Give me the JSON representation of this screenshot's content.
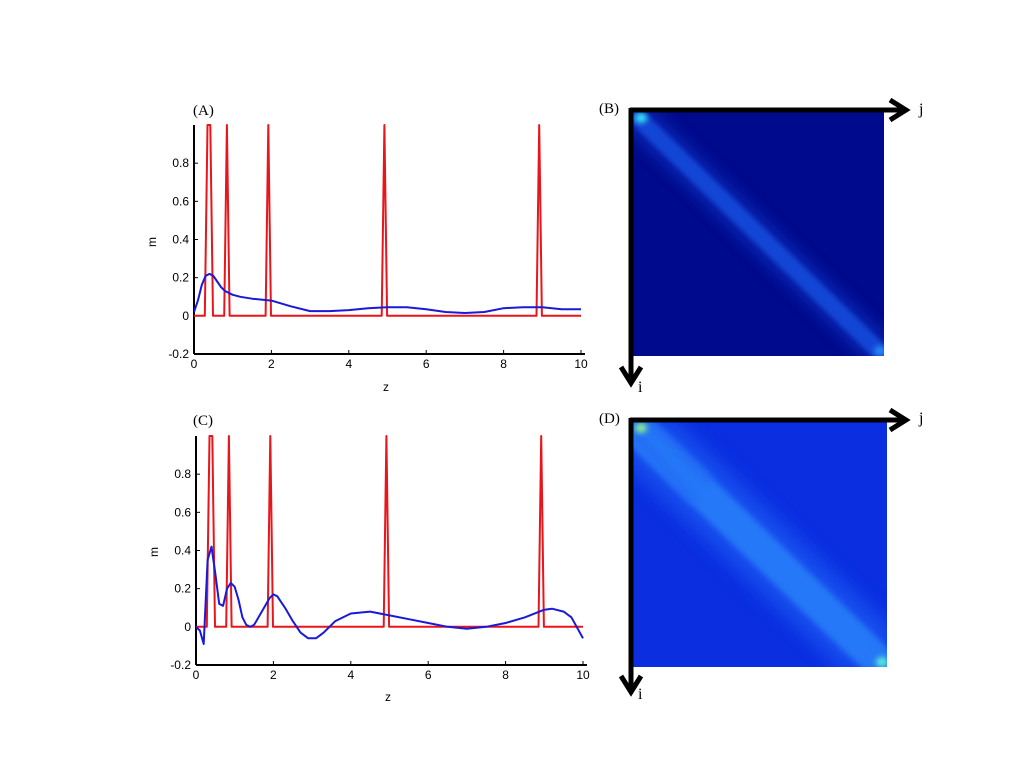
{
  "panels": {
    "a": "(A)",
    "b": "(B)",
    "c": "(C)",
    "d": "(D)"
  },
  "arrows": {
    "col_label": "j",
    "row_label": "i"
  },
  "chart_data": [
    {
      "type": "line",
      "panel": "(A)",
      "xlabel": "z",
      "ylabel": "m",
      "xlim": [
        0,
        10
      ],
      "ylim": [
        -0.2,
        1.0
      ],
      "xticks": [
        "0",
        "2",
        "4",
        "6",
        "8",
        "10"
      ],
      "yticks": [
        "-0.2",
        "0",
        "0.2",
        "0.4",
        "0.6",
        "0.8"
      ],
      "series": [
        {
          "color": "#e8161b",
          "x": [
            0,
            0.28,
            0.35,
            0.42,
            0.49,
            0.56,
            0.78,
            0.85,
            0.92,
            0.99,
            1.78,
            1.85,
            1.92,
            1.99,
            2.06,
            4.78,
            4.85,
            4.92,
            4.99,
            5.06,
            8.78,
            8.85,
            8.92,
            8.99,
            9.06,
            10
          ],
          "y": [
            0,
            0,
            1.0,
            1.0,
            0,
            0,
            0,
            1.0,
            0,
            0,
            0,
            0,
            1.0,
            0,
            0,
            0,
            0,
            1.0,
            0,
            0,
            0,
            0,
            1.0,
            0,
            0,
            0
          ]
        },
        {
          "color": "#1a1ad6",
          "x": [
            0,
            0.1,
            0.2,
            0.3,
            0.4,
            0.5,
            0.6,
            0.7,
            0.8,
            1.0,
            1.2,
            1.5,
            2.0,
            2.5,
            3.0,
            3.5,
            4.0,
            4.5,
            5.0,
            5.5,
            6.0,
            6.5,
            7.0,
            7.5,
            8.0,
            8.5,
            9.0,
            9.5,
            10.0
          ],
          "y": [
            0.02,
            0.08,
            0.16,
            0.21,
            0.22,
            0.21,
            0.18,
            0.15,
            0.13,
            0.11,
            0.1,
            0.09,
            0.08,
            0.05,
            0.025,
            0.025,
            0.03,
            0.04,
            0.045,
            0.045,
            0.035,
            0.02,
            0.015,
            0.02,
            0.04,
            0.045,
            0.045,
            0.035,
            0.035
          ]
        }
      ]
    },
    {
      "type": "heatmap",
      "panel": "(B)",
      "variant": "narrow-decaying-diagonal"
    },
    {
      "type": "line",
      "panel": "(C)",
      "xlabel": "z",
      "ylabel": "m",
      "xlim": [
        0,
        10
      ],
      "ylim": [
        -0.2,
        1.0
      ],
      "xticks": [
        "0",
        "2",
        "4",
        "6",
        "8",
        "10"
      ],
      "yticks": [
        "-0.2",
        "0",
        "0.2",
        "0.4",
        "0.6",
        "0.8"
      ],
      "series": [
        {
          "color": "#e8161b",
          "x": [
            0,
            0.28,
            0.35,
            0.42,
            0.49,
            0.56,
            0.78,
            0.85,
            0.92,
            0.99,
            1.78,
            1.85,
            1.92,
            1.99,
            2.06,
            4.78,
            4.85,
            4.92,
            4.99,
            5.06,
            8.78,
            8.85,
            8.92,
            8.99,
            9.06,
            10
          ],
          "y": [
            0,
            0,
            1.0,
            1.0,
            0,
            0,
            0,
            1.0,
            0,
            0,
            0,
            0,
            1.0,
            0,
            0,
            0,
            0,
            1.0,
            0,
            0,
            0,
            0,
            1.0,
            0,
            0,
            0
          ]
        },
        {
          "color": "#1a1ad6",
          "x": [
            0,
            0.1,
            0.2,
            0.3,
            0.4,
            0.5,
            0.6,
            0.7,
            0.8,
            0.9,
            1.0,
            1.1,
            1.2,
            1.3,
            1.4,
            1.5,
            1.7,
            1.9,
            2.0,
            2.1,
            2.3,
            2.5,
            2.7,
            2.9,
            3.1,
            3.3,
            3.6,
            4.0,
            4.5,
            5.0,
            5.5,
            6.0,
            6.5,
            7.0,
            7.5,
            8.0,
            8.5,
            9.0,
            9.2,
            9.5,
            9.7,
            10.0
          ],
          "y": [
            0.0,
            -0.02,
            -0.09,
            0.35,
            0.42,
            0.28,
            0.12,
            0.11,
            0.2,
            0.23,
            0.21,
            0.14,
            0.05,
            0.01,
            0.0,
            0.01,
            0.08,
            0.15,
            0.17,
            0.16,
            0.1,
            0.03,
            -0.03,
            -0.06,
            -0.06,
            -0.03,
            0.03,
            0.07,
            0.08,
            0.06,
            0.04,
            0.02,
            0.0,
            -0.01,
            0.0,
            0.02,
            0.05,
            0.09,
            0.095,
            0.08,
            0.05,
            -0.06
          ]
        }
      ]
    },
    {
      "type": "heatmap",
      "panel": "(D)",
      "variant": "wide-banded-diagonal"
    }
  ]
}
